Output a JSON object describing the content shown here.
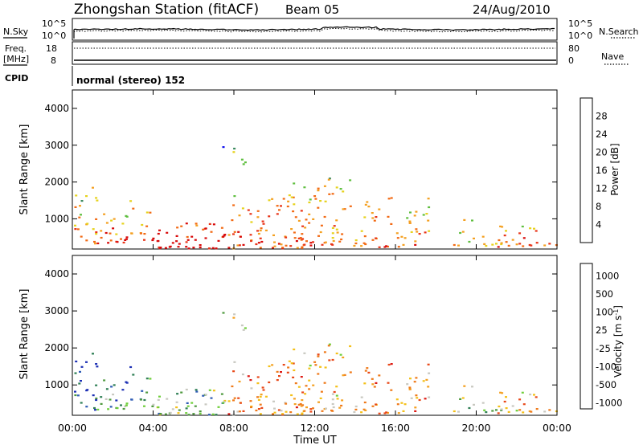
{
  "header": {
    "title": "Zhongshan Station (fitACF)",
    "beam": "Beam 05",
    "date": "24/Aug/2010"
  },
  "params_panel": {
    "nsky_label": "N.Sky",
    "nsearch_label": "N.Search",
    "freq_label_line1": "Freq.",
    "freq_label_line2": "[MHz]",
    "nave_label": "Nave",
    "cpid_label": "CPID",
    "cpid_value": "normal (stereo) 152",
    "left_ticks_noise": [
      "10^5",
      "10^0"
    ],
    "right_ticks_noise": [
      "10^5",
      "10^0"
    ],
    "left_ticks_freq": [
      "18",
      "8"
    ],
    "right_ticks_nave": [
      "80",
      "0"
    ]
  },
  "colors": {
    "power_scale": [
      "#1010ee",
      "#2a52b5",
      "#3c8a5e",
      "#5fbf3f",
      "#e6d21c",
      "#f4a020",
      "#f26a14",
      "#e83418",
      "#d80a0a"
    ],
    "velocity_scale": [
      "#1c2fb4",
      "#2f5cb5",
      "#2f7f55",
      "#4f9a3f",
      "#6fcf3a",
      "#c8c8c0",
      "#f4c018",
      "#f4a020",
      "#ef7a1a",
      "#e84818",
      "#dd1a14"
    ]
  },
  "chart_data": [
    {
      "type": "heatmap",
      "name": "Power",
      "xlabel": "",
      "ylabel": "Slant Range [km]",
      "x_ticks": [
        "00:00",
        "04:00",
        "08:00",
        "12:00",
        "16:00",
        "20:00",
        "00:00"
      ],
      "y_ticks": [
        "1000",
        "2000",
        "3000",
        "4000"
      ],
      "ylim": [
        180,
        4500
      ],
      "colorbar_label": "Power [dB]",
      "colorbar_ticks": [
        "4",
        "8",
        "12",
        "16",
        "20",
        "24",
        "28"
      ],
      "clim": [
        0,
        32
      ]
    },
    {
      "type": "heatmap",
      "name": "Velocity",
      "xlabel": "Time UT",
      "ylabel": "Slant Range [km]",
      "x_ticks": [
        "00:00",
        "04:00",
        "08:00",
        "12:00",
        "16:00",
        "20:00",
        "00:00"
      ],
      "y_ticks": [
        "1000",
        "2000",
        "3000",
        "4000"
      ],
      "ylim": [
        180,
        4500
      ],
      "colorbar_label": "Velocity [m s^-1]",
      "colorbar_ticks": [
        "1000",
        "500",
        "100",
        "25",
        "-25",
        "-100",
        "-500",
        "-1000"
      ]
    }
  ]
}
